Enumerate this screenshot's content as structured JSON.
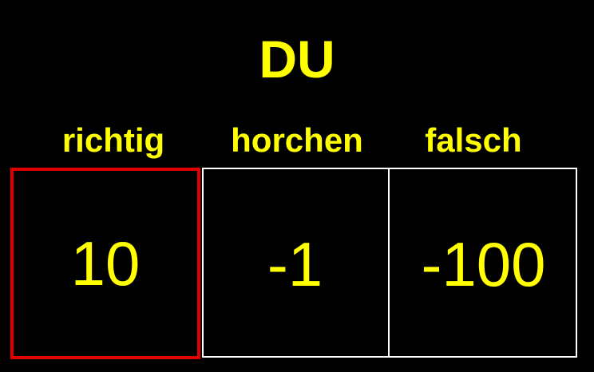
{
  "title": "DU",
  "columns": [
    {
      "label": "richtig",
      "value": "10",
      "highlighted": true
    },
    {
      "label": "horchen",
      "value": "-1",
      "highlighted": false
    },
    {
      "label": "falsch",
      "value": "-100",
      "highlighted": false
    }
  ],
  "colors": {
    "background": "#000000",
    "text": "#FFFF00",
    "grid_border": "#FFFFFF",
    "highlight_border": "#E00000"
  }
}
